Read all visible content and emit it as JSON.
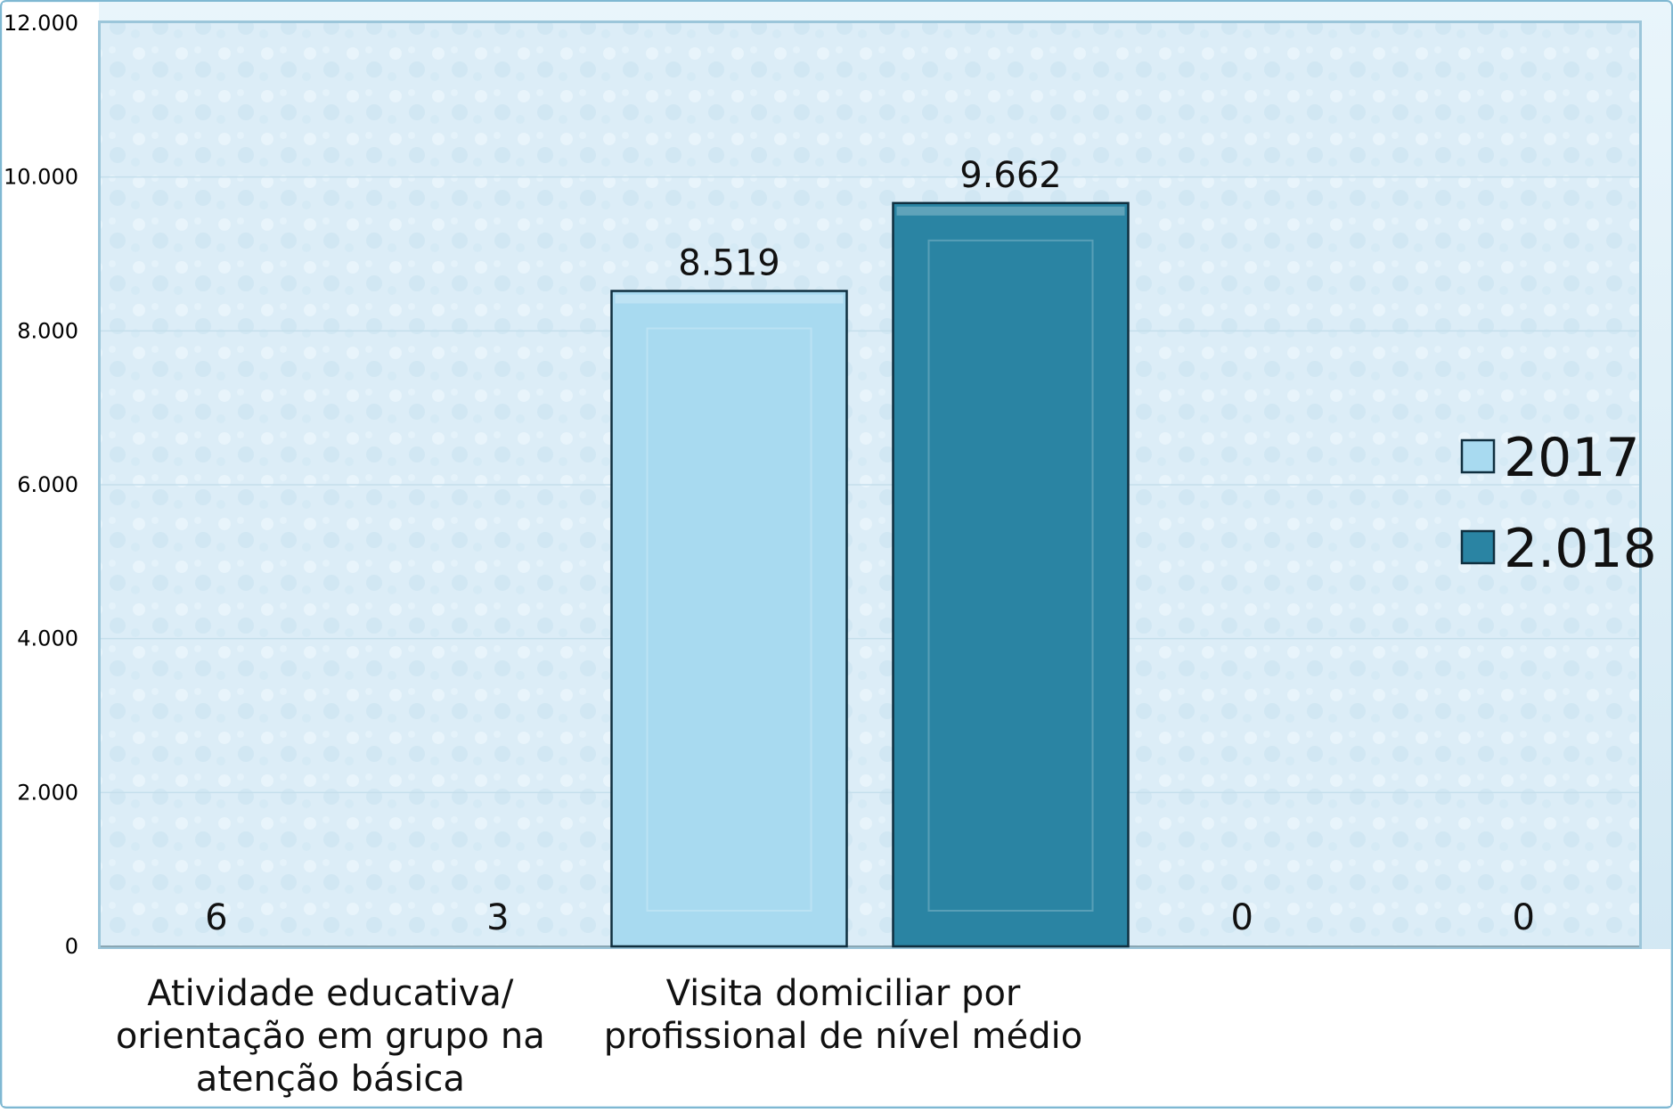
{
  "chart_data": {
    "type": "bar",
    "categories": [
      [
        "Atividade educativa/",
        "orientação em grupo na",
        "atenção básica"
      ],
      [
        "Visita domiciliar por",
        "profissional de nível médio"
      ],
      [
        "",
        ""
      ]
    ],
    "series": [
      {
        "name": "2017",
        "values": [
          6,
          8519,
          0
        ],
        "value_labels": [
          "6",
          "8.519",
          "0"
        ],
        "color": "#a8daf0"
      },
      {
        "name": "2.018",
        "values": [
          3,
          9662,
          0
        ],
        "value_labels": [
          "3",
          "9.662",
          "0"
        ],
        "color": "#2a84a3"
      }
    ],
    "yticks": [
      0,
      2000,
      4000,
      6000,
      8000,
      10000,
      12000
    ],
    "ytick_labels": [
      "0",
      "2.000",
      "4.000",
      "6.000",
      "8.000",
      "10.000",
      "12.000"
    ],
    "ylim": [
      0,
      12000
    ],
    "grid": true,
    "legend_position": "right",
    "title": "",
    "xlabel": "",
    "ylabel": ""
  },
  "colors": {
    "plot_background": "#dbeef8",
    "frame_border": "#7fb8d2",
    "gridline": "#c5dfec",
    "bar_border": "#0f2f3f"
  }
}
